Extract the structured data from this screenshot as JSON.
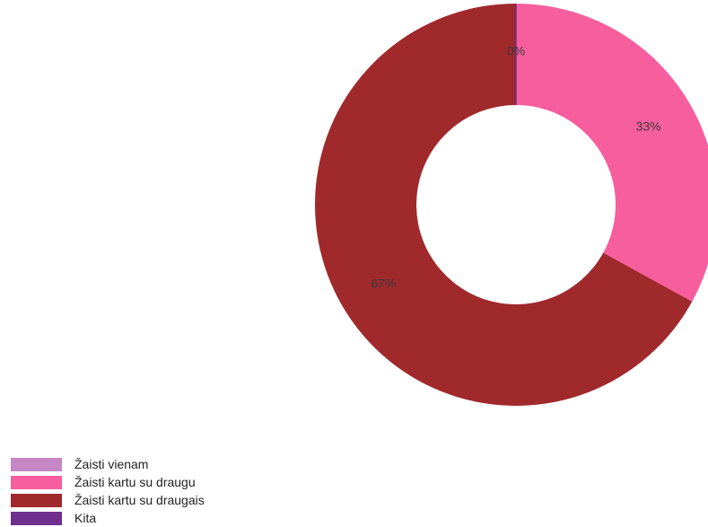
{
  "chart_data": {
    "type": "pie",
    "variant": "donut",
    "title": "",
    "categories": [
      "Žaisti vienam",
      "Žaisti kartu su draugu",
      "Žaisti kartu su draugais",
      "Kita"
    ],
    "values": [
      0,
      33,
      67,
      0
    ],
    "value_labels": [
      "0%",
      "33%",
      "67%",
      ""
    ],
    "colors": [
      "#C486C4",
      "#F75E9D",
      "#A0292C",
      "#6E2F8F"
    ],
    "legend_position": "bottom-left"
  }
}
